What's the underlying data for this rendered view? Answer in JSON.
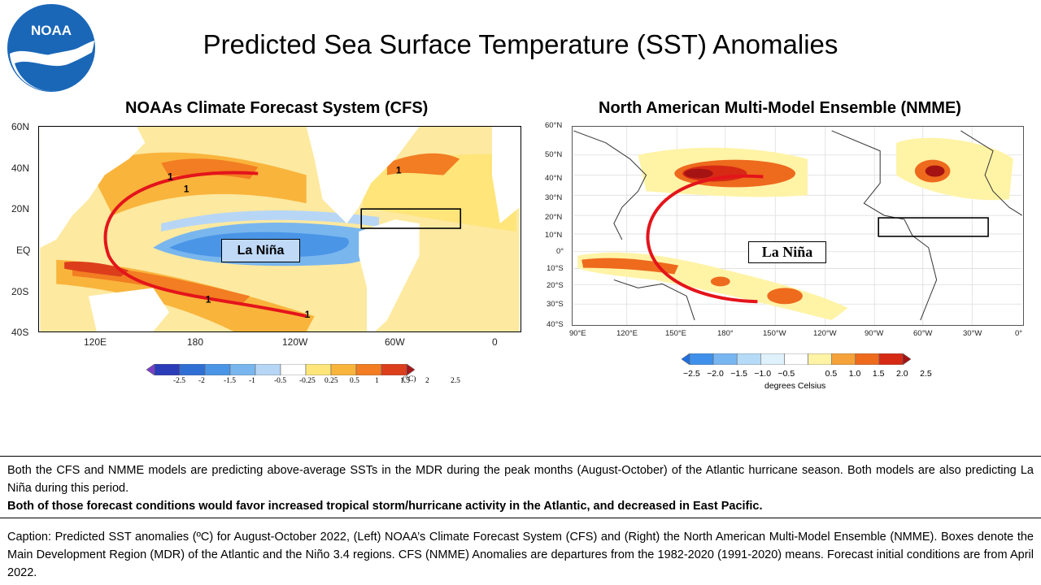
{
  "title": "Predicted Sea Surface Temperature (SST) Anomalies",
  "logo": {
    "text": "NOAA",
    "icon": "noaa-logo-icon"
  },
  "cfs": {
    "title": "NOAAs Climate Forecast System (CFS)",
    "lat_ticks": [
      "60N",
      "40N",
      "20N",
      "EQ",
      "20S",
      "40S"
    ],
    "lon_ticks": [
      "120E",
      "180",
      "120W",
      "60W",
      "0"
    ],
    "la_nina_label": "La Niña",
    "contour_labels": [
      "1",
      "1",
      "1",
      "1",
      "1"
    ],
    "colorbar": {
      "labels": [
        "-2.5",
        "-2",
        "-1.5",
        "-1",
        "-0.5",
        "-0.25",
        "0.25",
        "0.5",
        "1",
        "1.5",
        "2",
        "2.5"
      ],
      "unit": "(°C)",
      "colors": [
        "#7a3fc9",
        "#2a3cb8",
        "#2f6fd4",
        "#4a95e6",
        "#79b6ee",
        "#b7d6f6",
        "#ffffff",
        "#ffe57a",
        "#f9b43c",
        "#f27d22",
        "#dc3e1c",
        "#a6171a"
      ]
    }
  },
  "nmme": {
    "title": "North American Multi-Model Ensemble (NMME)",
    "lat_ticks": [
      "60°N",
      "50°N",
      "40°N",
      "30°N",
      "20°N",
      "10°N",
      "0°",
      "10°S",
      "20°S",
      "30°S",
      "40°S"
    ],
    "lon_ticks": [
      "90°E",
      "120°E",
      "150°E",
      "180°",
      "150°W",
      "120°W",
      "90°W",
      "60°W",
      "30°W",
      "0°"
    ],
    "la_nina_label": "La Niña",
    "colorbar": {
      "labels": [
        "−2.5",
        "−2.0",
        "−1.5",
        "−1.0",
        "−0.5",
        "0.5",
        "1.0",
        "1.5",
        "2.0",
        "2.5"
      ],
      "unit": "degrees Celsius",
      "colors": [
        "#1c6fe0",
        "#3f90ea",
        "#78b6f2",
        "#b5dbf7",
        "#dff1fb",
        "#ffffff",
        "#fff3a6",
        "#f6a23a",
        "#ee6a1d",
        "#d62a15",
        "#a51313"
      ]
    }
  },
  "summary": {
    "line1": "Both the CFS and NMME models are predicting above-average SSTs in the MDR during the peak months (August-October) of the Atlantic hurricane season. Both models are also predicting La Niña during this period.",
    "line2": "Both of those forecast conditions would favor increased tropical storm/hurricane activity in the Atlantic, and decreased in East Pacific."
  },
  "caption": "Caption: Predicted SST anomalies (ºC) for August-October 2022, (Left) NOAA’s Climate Forecast System (CFS) and (Right) the North American Multi-Model Ensemble (NMME). Boxes denote the Main Development Region (MDR) of the Atlantic and the Niño 3.4 regions. CFS (NMME) Anomalies are departures from the 1982-2020 (1991-2020) means.  Forecast initial conditions are from April 2022."
}
